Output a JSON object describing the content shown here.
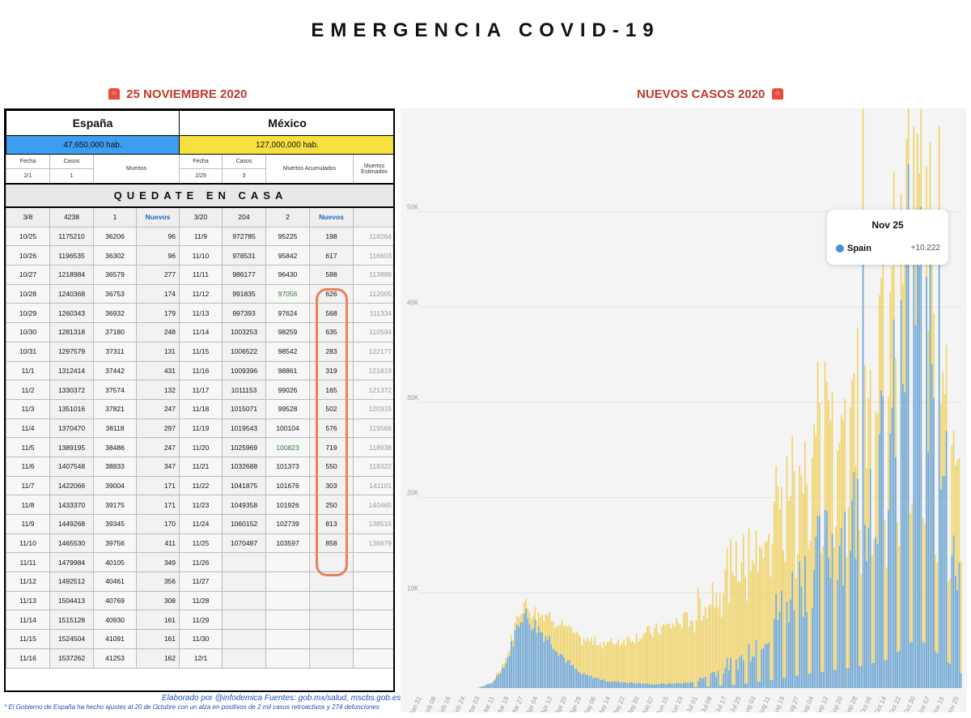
{
  "title": "EMERGENCIA COVID-19",
  "left_title": "25 NOVIEMBRE  2020",
  "right_title": "NUEVOS CASOS 2020",
  "table": {
    "spain": {
      "name": "España",
      "population": "47,650,000 hab."
    },
    "mexico": {
      "name": "México",
      "population": "127,000,000 hab."
    },
    "headers": {
      "fecha": "Fecha",
      "casos": "Casos",
      "muertos": "Muertos",
      "muertos_acum": "Muertos Acumulados",
      "muertos_est": "Muertos Estimados"
    },
    "initial": {
      "es_fecha": "2/1",
      "es_casos": "1",
      "mx_fecha": "2/29",
      "mx_casos": "3"
    },
    "band": "QUEDATE EN CASA",
    "first": {
      "es_fecha": "3/8",
      "es_casos": "4238",
      "es_muertos": "1",
      "nuevos": "Nuevos",
      "mx_fecha": "3/20",
      "mx_casos": "204",
      "mx_muertos": "2"
    },
    "rows": [
      [
        "10/25",
        "1175210",
        "36206",
        "96",
        "11/9",
        "972785",
        "95225",
        "198",
        "118264"
      ],
      [
        "10/26",
        "1196535",
        "36302",
        "96",
        "11/10",
        "978531",
        "95842",
        "617",
        "116603"
      ],
      [
        "10/27",
        "1218984",
        "36579",
        "277",
        "11/11",
        "986177",
        "96430",
        "588",
        "113888"
      ],
      [
        "10/28",
        "1240368",
        "36753",
        "174",
        "11/12",
        "991835",
        "97056",
        "626",
        "112005"
      ],
      [
        "10/29",
        "1260343",
        "36932",
        "179",
        "11/13",
        "997393",
        "97624",
        "568",
        "111334"
      ],
      [
        "10/30",
        "1281318",
        "37180",
        "248",
        "11/14",
        "1003253",
        "98259",
        "635",
        "110594"
      ],
      [
        "10/31",
        "1297579",
        "37311",
        "131",
        "11/15",
        "1006522",
        "98542",
        "283",
        "122177"
      ],
      [
        "11/1",
        "1312414",
        "37442",
        "431",
        "11/16",
        "1009396",
        "98861",
        "319",
        "121819"
      ],
      [
        "11/2",
        "1330372",
        "37574",
        "132",
        "11/17",
        "1011153",
        "99026",
        "165",
        "121372"
      ],
      [
        "11/3",
        "1351016",
        "37821",
        "247",
        "11/18",
        "1015071",
        "99528",
        "502",
        "120315"
      ],
      [
        "11/4",
        "1370470",
        "38118",
        "297",
        "11/19",
        "1019543",
        "100104",
        "576",
        "119568"
      ],
      [
        "11/5",
        "1389195",
        "38486",
        "247",
        "11/20",
        "1025969",
        "100823",
        "719",
        "118938"
      ],
      [
        "11/6",
        "1407548",
        "38833",
        "347",
        "11/21",
        "1032688",
        "101373",
        "550",
        "118322"
      ],
      [
        "11/7",
        "1422066",
        "39004",
        "171",
        "11/22",
        "1041875",
        "101676",
        "303",
        "141101"
      ],
      [
        "11/8",
        "1433370",
        "39175",
        "171",
        "11/23",
        "1049358",
        "101926",
        "250",
        "140465"
      ],
      [
        "11/9",
        "1449268",
        "39345",
        "170",
        "11/24",
        "1060152",
        "102739",
        "813",
        "138515"
      ],
      [
        "11/10",
        "1465530",
        "39756",
        "411",
        "11/25",
        "1070487",
        "103597",
        "858",
        "136679"
      ],
      [
        "11/11",
        "1479984",
        "40105",
        "349",
        "11/26",
        "",
        "",
        "",
        ""
      ],
      [
        "11/12",
        "1492512",
        "40461",
        "356",
        "11/27",
        "",
        "",
        "",
        ""
      ],
      [
        "11/13",
        "1504413",
        "40769",
        "308",
        "11/28",
        "",
        "",
        "",
        ""
      ],
      [
        "11/14",
        "1515128",
        "40930",
        "161",
        "11/29",
        "",
        "",
        "",
        ""
      ],
      [
        "11/15",
        "1524504",
        "41091",
        "161",
        "11/30",
        "",
        "",
        "",
        ""
      ],
      [
        "11/16",
        "1537262",
        "41253",
        "162",
        "12/1",
        "",
        "",
        "",
        ""
      ]
    ]
  },
  "footer": {
    "credit": "Elaborado por @infodemica Fuentes: gob.mx/salud, mscbs.gob.es",
    "note": "* El Gobierno de España ha hecho ajustes al 20 de Octubre con un alza en positivos de 2 mil casos retroactivos y 274 defunciones"
  },
  "tooltip": {
    "date": "Nov 25",
    "series": "Spain",
    "value": "+10.222"
  },
  "colors": {
    "spain": "#6aa6de",
    "mexico": "#f0d264",
    "band_highlight": "#e8825a"
  },
  "chart_data": {
    "type": "bar",
    "stacked": "overlay",
    "ylim": [
      0,
      60000
    ],
    "yticks": [
      "10K",
      "20K",
      "30K",
      "40K",
      "50K"
    ],
    "ytick_values": [
      10000,
      20000,
      30000,
      40000,
      50000
    ],
    "xticks": [
      "Jan 31",
      "Feb 08",
      "Feb 16",
      "Feb 24",
      "Mar 03",
      "Mar 11",
      "Mar 19",
      "Mar 27",
      "Apr 04",
      "Apr 12",
      "Apr 20",
      "Apr 28",
      "May 06",
      "May 14",
      "May 22",
      "May 30",
      "Jun 07",
      "Jun 15",
      "Jun 23",
      "Jul 01",
      "Jul 09",
      "Jul 17",
      "Jul 25",
      "Aug 03",
      "Aug 11",
      "Aug 19",
      "Aug 27",
      "Sep 04",
      "Sep 12",
      "Sep 20",
      "Sep 28",
      "Oct 06",
      "Oct 14",
      "Oct 22",
      "Oct 30",
      "Nov 07",
      "Nov 15",
      "Nov 25"
    ],
    "key_points": [
      {
        "x": "Jan 31",
        "spain": 0,
        "other": 0
      },
      {
        "x": "Mar 03",
        "spain": 0,
        "other": 0
      },
      {
        "x": "Mar 11",
        "spain": 500,
        "other": 100
      },
      {
        "x": "Mar 19",
        "spain": 2800,
        "other": 500
      },
      {
        "x": "Mar 27",
        "spain": 8000,
        "other": 1000
      },
      {
        "x": "Apr 04",
        "spain": 6500,
        "other": 1500
      },
      {
        "x": "Apr 12",
        "spain": 5000,
        "other": 2500
      },
      {
        "x": "Apr 20",
        "spain": 3000,
        "other": 3500
      },
      {
        "x": "Apr 28",
        "spain": 1500,
        "other": 3500
      },
      {
        "x": "May 14",
        "spain": 700,
        "other": 4000
      },
      {
        "x": "Jun 07",
        "spain": 400,
        "other": 5500
      },
      {
        "x": "Jul 01",
        "spain": 600,
        "other": 7000
      },
      {
        "x": "Jul 25",
        "spain": 2500,
        "other": 9500
      },
      {
        "x": "Aug 11",
        "spain": 5500,
        "other": 11000
      },
      {
        "x": "Aug 27",
        "spain": 9000,
        "other": 12000
      },
      {
        "x": "Sep 12",
        "spain": 12000,
        "other": 13000
      },
      {
        "x": "Sep 28",
        "spain": 15000,
        "other": 12000
      },
      {
        "x": "Oct 14",
        "spain": 20000,
        "other": 12000
      },
      {
        "x": "Oct 30",
        "spain": 35000,
        "other": 10000
      },
      {
        "x": "Nov 07",
        "spain": 28000,
        "other": 10000
      },
      {
        "x": "Nov 25",
        "spain": 10222,
        "other": 10000
      }
    ]
  }
}
